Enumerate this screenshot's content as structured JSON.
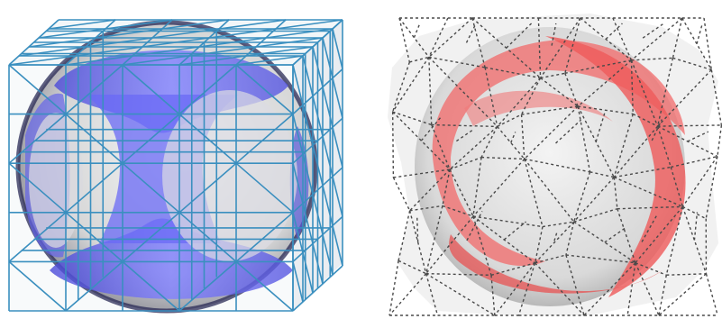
{
  "figure": {
    "panels": [
      {
        "name": "blue-mesh-panel",
        "surface_color": "#6a6af5",
        "surface_shadow": "#3a3aa8",
        "mesh_color": "#3a8fbf",
        "mesh_style": "solid",
        "sphere_color": "#c9c9c9"
      },
      {
        "name": "red-mesh-panel",
        "surface_color": "#f26a6a",
        "surface_shadow": "#c74343",
        "mesh_color": "#4a4a4a",
        "mesh_style": "dashed",
        "sphere_color": "#d4d4d4"
      }
    ]
  }
}
